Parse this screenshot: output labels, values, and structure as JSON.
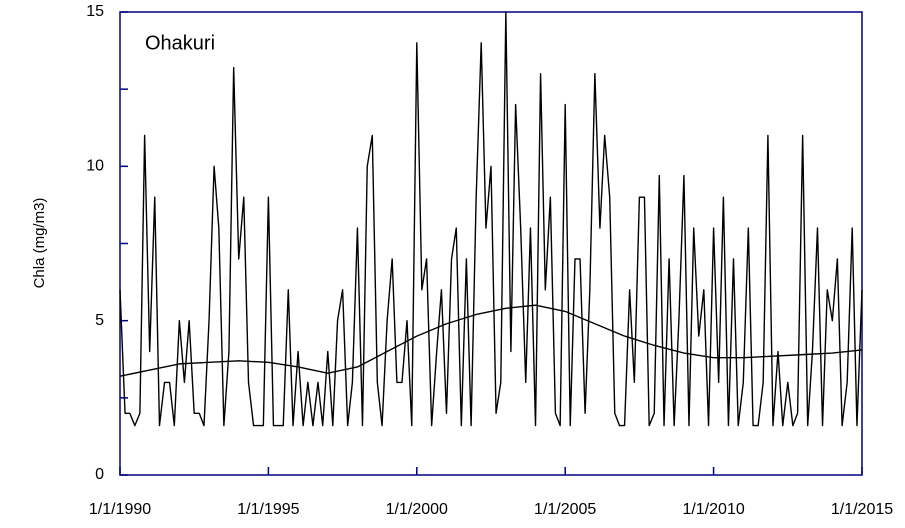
{
  "chart_data": {
    "type": "line",
    "annotation": "Ohakuri",
    "y_label": "Chla (mg/m3)",
    "xlim": [
      1990,
      2015
    ],
    "xticks": [
      {
        "value": 1990,
        "label": "1/1/1990"
      },
      {
        "value": 1995,
        "label": "1/1/1995"
      },
      {
        "value": 2000,
        "label": "1/1/2000"
      },
      {
        "value": 2005,
        "label": "1/1/2005"
      },
      {
        "value": 2010,
        "label": "1/1/2010"
      },
      {
        "value": 2015,
        "label": "1/1/2015"
      }
    ],
    "ylim": [
      0,
      15
    ],
    "yticks": [
      0,
      5,
      10,
      15
    ],
    "yminor": [
      2.5,
      7.5,
      12.5
    ],
    "axis_color": "#000080",
    "series": [
      {
        "color": "#000000",
        "x": [
          1990,
          1990.17,
          1990.33,
          1990.5,
          1990.67,
          1990.83,
          1991,
          1991.17,
          1991.33,
          1991.5,
          1991.67,
          1991.83,
          1992,
          1992.17,
          1992.33,
          1992.5,
          1992.67,
          1992.83,
          1993,
          1993.17,
          1993.33,
          1993.5,
          1993.67,
          1993.83,
          1994,
          1994.17,
          1994.33,
          1994.5,
          1994.67,
          1994.83,
          1995,
          1995.17,
          1995.33,
          1995.5,
          1995.67,
          1995.83,
          1996,
          1996.17,
          1996.33,
          1996.5,
          1996.67,
          1996.83,
          1997,
          1997.17,
          1997.33,
          1997.5,
          1997.67,
          1997.83,
          1998,
          1998.17,
          1998.33,
          1998.5,
          1998.67,
          1998.83,
          1999,
          1999.17,
          1999.33,
          1999.5,
          1999.67,
          1999.83,
          2000,
          2000.17,
          2000.33,
          2000.5,
          2000.67,
          2000.83,
          2001,
          2001.17,
          2001.33,
          2001.5,
          2001.67,
          2001.83,
          2002,
          2002.17,
          2002.33,
          2002.5,
          2002.67,
          2002.83,
          2003,
          2003.17,
          2003.33,
          2003.5,
          2003.67,
          2003.83,
          2004,
          2004.17,
          2004.33,
          2004.5,
          2004.67,
          2004.83,
          2005,
          2005.17,
          2005.33,
          2005.5,
          2005.67,
          2005.83,
          2006,
          2006.17,
          2006.33,
          2006.5,
          2006.67,
          2006.83,
          2007,
          2007.17,
          2007.33,
          2007.5,
          2007.67,
          2007.83,
          2008,
          2008.17,
          2008.33,
          2008.5,
          2008.67,
          2008.83,
          2009,
          2009.17,
          2009.33,
          2009.5,
          2009.67,
          2009.83,
          2010,
          2010.17,
          2010.33,
          2010.5,
          2010.67,
          2010.83,
          2011,
          2011.17,
          2011.33,
          2011.5,
          2011.67,
          2011.83,
          2012,
          2012.17,
          2012.33,
          2012.5,
          2012.67,
          2012.83,
          2013,
          2013.17,
          2013.33,
          2013.5,
          2013.67,
          2013.83,
          2014,
          2014.17,
          2014.33,
          2014.5,
          2014.67,
          2014.83,
          2015
        ],
        "values": [
          6,
          2,
          2,
          1.6,
          2,
          11,
          4,
          9,
          1.6,
          3,
          3,
          1.6,
          5,
          3,
          5,
          2,
          2,
          1.6,
          5,
          10,
          8,
          1.6,
          4,
          13.2,
          7,
          9,
          3,
          1.6,
          1.6,
          1.6,
          9,
          1.6,
          1.6,
          1.6,
          6,
          1.6,
          4,
          1.6,
          3,
          1.6,
          3,
          1.6,
          4,
          1.6,
          5,
          6,
          1.6,
          3,
          8,
          1.6,
          10,
          11,
          3,
          1.6,
          5,
          7,
          3,
          3,
          5,
          1.6,
          14,
          6,
          7,
          1.6,
          4,
          6,
          2,
          7,
          8,
          1.6,
          7,
          1.6,
          9,
          14,
          8,
          10,
          2,
          3,
          15,
          4,
          12,
          8,
          3,
          8,
          1.6,
          13,
          6,
          9,
          2,
          1.6,
          12,
          1.6,
          7,
          7,
          2,
          6,
          13,
          8,
          11,
          9,
          2,
          1.6,
          1.6,
          6,
          3,
          9,
          9,
          1.6,
          2,
          9.7,
          1.6,
          7,
          1.6,
          5,
          9.7,
          1.6,
          8,
          4.5,
          6,
          1.6,
          8,
          3,
          9,
          1.6,
          7,
          1.6,
          3,
          8,
          1.6,
          1.6,
          3,
          11,
          1.6,
          4,
          1.6,
          3,
          1.6,
          2,
          11,
          1.6,
          4,
          8,
          1.6,
          6,
          5,
          7,
          1.6,
          3,
          8,
          1.6,
          6
        ]
      },
      {
        "color": "#000000",
        "x": [
          1990,
          1991,
          1992,
          1993,
          1994,
          1995,
          1996,
          1997,
          1998,
          1999,
          2000,
          2001,
          2002,
          2003,
          2004,
          2005,
          2006,
          2007,
          2008,
          2009,
          2010,
          2011,
          2012,
          2013,
          2014,
          2015
        ],
        "values": [
          3.2,
          3.4,
          3.6,
          3.65,
          3.7,
          3.65,
          3.5,
          3.3,
          3.5,
          4.0,
          4.5,
          4.9,
          5.2,
          5.4,
          5.5,
          5.3,
          4.9,
          4.5,
          4.2,
          3.95,
          3.8,
          3.8,
          3.85,
          3.9,
          3.95,
          4.05
        ]
      }
    ]
  }
}
